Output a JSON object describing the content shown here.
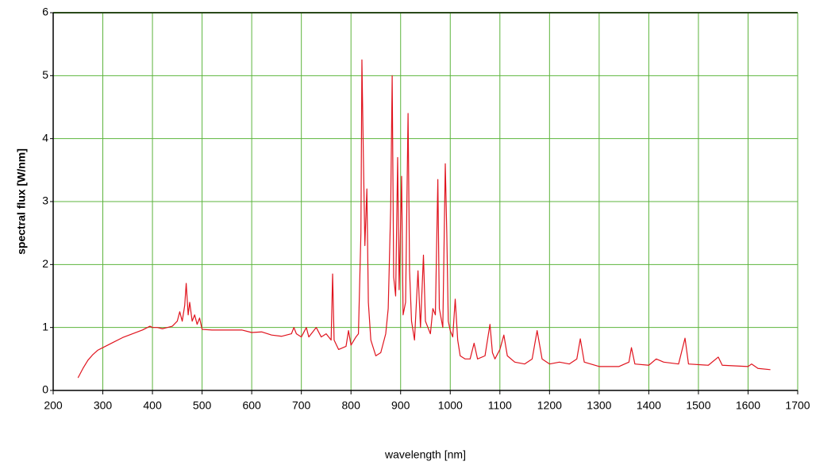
{
  "chart_data": {
    "type": "line",
    "x_label": "wavelength [nm]",
    "y_label": "spectral flux [W/nm]",
    "x": [
      250,
      260,
      270,
      280,
      290,
      300,
      320,
      340,
      360,
      380,
      395,
      400,
      410,
      420,
      430,
      440,
      450,
      455,
      460,
      465,
      468,
      472,
      475,
      480,
      485,
      490,
      495,
      500,
      520,
      540,
      560,
      580,
      600,
      620,
      640,
      660,
      680,
      685,
      690,
      700,
      710,
      715,
      730,
      740,
      750,
      760,
      763,
      766,
      775,
      790,
      795,
      800,
      810,
      815,
      820,
      822,
      825,
      828,
      832,
      835,
      840,
      850,
      860,
      870,
      875,
      880,
      883,
      886,
      890,
      894,
      897,
      902,
      905,
      910,
      915,
      918,
      922,
      928,
      935,
      940,
      946,
      950,
      955,
      960,
      965,
      970,
      975,
      978,
      985,
      990,
      993,
      996,
      1000,
      1005,
      1010,
      1015,
      1020,
      1030,
      1040,
      1048,
      1055,
      1070,
      1080,
      1085,
      1090,
      1100,
      1108,
      1115,
      1130,
      1150,
      1165,
      1175,
      1185,
      1200,
      1220,
      1240,
      1255,
      1262,
      1270,
      1300,
      1340,
      1360,
      1365,
      1372,
      1400,
      1415,
      1430,
      1460,
      1473,
      1480,
      1520,
      1540,
      1548,
      1600,
      1607,
      1620,
      1645
    ],
    "values": [
      0.2,
      0.35,
      0.48,
      0.57,
      0.64,
      0.68,
      0.76,
      0.84,
      0.9,
      0.96,
      1.02,
      1.0,
      1.0,
      0.98,
      1.0,
      1.02,
      1.1,
      1.25,
      1.1,
      1.35,
      1.7,
      1.2,
      1.4,
      1.1,
      1.2,
      1.05,
      1.15,
      0.97,
      0.96,
      0.96,
      0.96,
      0.96,
      0.92,
      0.93,
      0.88,
      0.86,
      0.9,
      1.0,
      0.9,
      0.85,
      1.0,
      0.85,
      1.0,
      0.85,
      0.9,
      0.8,
      1.85,
      0.8,
      0.65,
      0.7,
      0.95,
      0.72,
      0.85,
      0.9,
      2.5,
      5.25,
      3.7,
      2.3,
      3.2,
      1.4,
      0.8,
      0.55,
      0.6,
      0.9,
      1.3,
      2.9,
      5.0,
      1.8,
      1.5,
      3.7,
      1.6,
      3.4,
      1.2,
      1.4,
      4.4,
      1.9,
      1.1,
      0.8,
      1.9,
      1.0,
      2.15,
      1.1,
      1.0,
      0.9,
      1.3,
      1.2,
      3.35,
      1.3,
      1.0,
      3.6,
      2.5,
      1.1,
      0.95,
      0.85,
      1.45,
      0.8,
      0.55,
      0.5,
      0.5,
      0.75,
      0.5,
      0.55,
      1.05,
      0.6,
      0.5,
      0.65,
      0.88,
      0.55,
      0.45,
      0.42,
      0.5,
      0.95,
      0.5,
      0.42,
      0.45,
      0.42,
      0.5,
      0.82,
      0.45,
      0.38,
      0.38,
      0.45,
      0.68,
      0.42,
      0.4,
      0.5,
      0.45,
      0.42,
      0.83,
      0.42,
      0.4,
      0.53,
      0.4,
      0.38,
      0.42,
      0.35,
      0.33
    ],
    "color": "#e0141e",
    "grid": true,
    "grid_color": "#5cb43c",
    "xlim": [
      200,
      1700
    ],
    "xticks": [
      200,
      300,
      400,
      500,
      600,
      700,
      800,
      900,
      1000,
      1100,
      1200,
      1300,
      1400,
      1500,
      1600,
      1700
    ],
    "ylim": [
      0,
      6
    ],
    "yticks": [
      0,
      1,
      2,
      3,
      4,
      5,
      6
    ]
  }
}
